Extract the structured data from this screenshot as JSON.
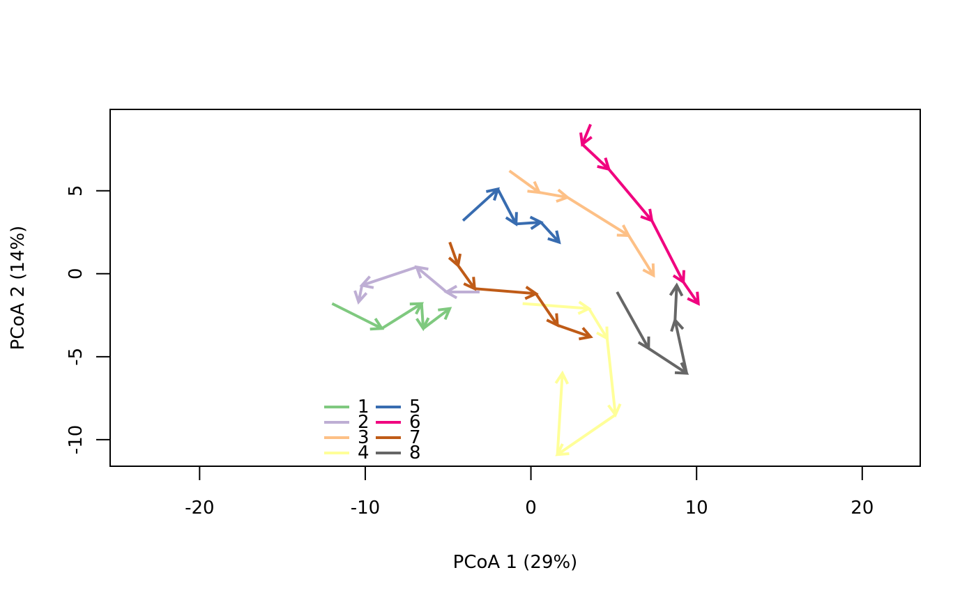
{
  "chart_data": {
    "type": "line",
    "title": "",
    "xlabel": "PCoA 1 (29%)",
    "ylabel": "PCoA 2 (14%)",
    "xlim": [
      -25.4,
      23.5
    ],
    "ylim": [
      -11.6,
      9.9
    ],
    "xticks": [
      -20,
      -10,
      0,
      10,
      20
    ],
    "xtick_labels": [
      "-20",
      "-10",
      "0",
      "10",
      "20"
    ],
    "yticks": [
      -10,
      -5,
      0,
      5
    ],
    "ytick_labels": [
      "-10",
      "-5",
      "0",
      "5"
    ],
    "grid": false,
    "legend": {
      "position": "bottom-left",
      "columns": 2
    },
    "arrows": true,
    "series": [
      {
        "name": "1",
        "color": "#7FC97F",
        "x": [
          -12.0,
          -9.0,
          -6.6,
          -6.5,
          -4.9
        ],
        "y": [
          -1.8,
          -3.3,
          -1.8,
          -3.3,
          -2.1
        ]
      },
      {
        "name": "2",
        "color": "#BEAED4",
        "x": [
          -3.1,
          -5.1,
          -6.9,
          -10.2,
          -10.4
        ],
        "y": [
          -1.1,
          -1.1,
          0.4,
          -0.7,
          -1.7
        ]
      },
      {
        "name": "3",
        "color": "#FDC086",
        "x": [
          -1.3,
          0.5,
          2.2,
          5.9,
          7.4
        ],
        "y": [
          6.2,
          4.9,
          4.6,
          2.3,
          -0.1
        ]
      },
      {
        "name": "4",
        "color": "#FFFF99",
        "x": [
          -0.5,
          3.5,
          4.6,
          5.1,
          1.6,
          1.9
        ],
        "y": [
          -1.8,
          -2.1,
          -3.9,
          -8.5,
          -10.9,
          -6.0
        ]
      },
      {
        "name": "5",
        "color": "#386CB0",
        "x": [
          -4.1,
          -2.0,
          -0.9,
          0.6,
          1.7
        ],
        "y": [
          3.2,
          5.1,
          3.0,
          3.1,
          1.9
        ]
      },
      {
        "name": "6",
        "color": "#F0027F",
        "x": [
          3.6,
          3.1,
          4.7,
          7.3,
          9.2,
          10.1
        ],
        "y": [
          9.0,
          7.8,
          6.3,
          3.2,
          -0.5,
          -1.8
        ]
      },
      {
        "name": "7",
        "color": "#BF5B17",
        "x": [
          -4.9,
          -4.4,
          -3.4,
          0.3,
          1.6,
          3.6
        ],
        "y": [
          1.9,
          0.5,
          -0.9,
          -1.2,
          -3.1,
          -3.8
        ]
      },
      {
        "name": "8",
        "color": "#666666",
        "x": [
          5.2,
          7.1,
          9.4,
          8.7,
          8.8
        ],
        "y": [
          -1.1,
          -4.5,
          -6.0,
          -2.8,
          -0.7
        ]
      }
    ]
  }
}
